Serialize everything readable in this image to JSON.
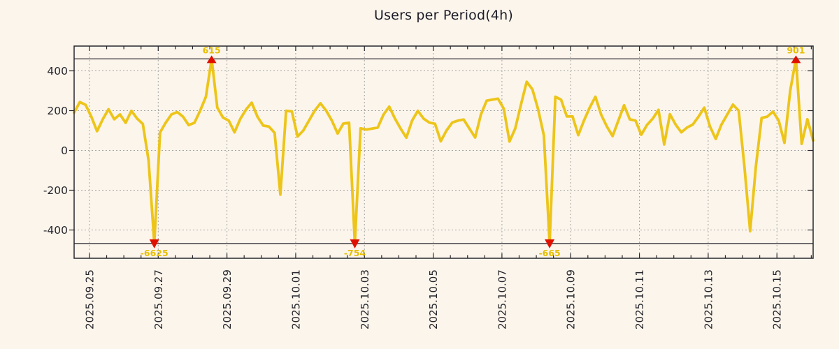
{
  "title": "Users per Period(4h)",
  "colors": {
    "background": "#FCF5EC",
    "line": "#EDC51A",
    "marker": "#E01000",
    "annotation_text": "#E6BE00",
    "axis": "#26262C",
    "grid": "#A3A3A3",
    "title_text": "#1B1B26"
  },
  "chart_data": {
    "type": "line",
    "title": "Users per Period(4h)",
    "xlabel": "",
    "ylabel": "",
    "x_tick_labels": [
      "2025.09.25",
      "2025.09.27",
      "2025.09.29",
      "2025.10.01",
      "2025.10.03",
      "2025.10.05",
      "2025.10.07",
      "2025.10.09",
      "2025.10.11",
      "2025.10.13",
      "2025.10.15"
    ],
    "x_tick_interval_days": 2,
    "points_between_major_ticks": 12,
    "major_tick_start_index": 2.68,
    "minor_ticks_per_major": 4,
    "y_ticks": [
      400,
      200,
      0,
      -200,
      -400
    ],
    "ylim": [
      -547,
      524
    ],
    "clip_max": 460,
    "clip_min": -468,
    "grid": true,
    "legend": null,
    "values": [
      190,
      243,
      229,
      170,
      97,
      157,
      207,
      157,
      181,
      139,
      199,
      160,
      133,
      -50,
      -6625,
      90,
      140,
      181,
      193,
      170,
      127,
      139,
      200,
      270,
      615,
      215,
      165,
      150,
      91,
      158,
      205,
      240,
      170,
      125,
      120,
      88,
      -222,
      199,
      196,
      70,
      100,
      150,
      200,
      237,
      200,
      150,
      85,
      135,
      139,
      -754,
      111,
      105,
      110,
      115,
      180,
      220,
      160,
      110,
      64,
      150,
      199,
      160,
      140,
      134,
      46,
      100,
      140,
      150,
      155,
      110,
      65,
      180,
      250,
      255,
      260,
      210,
      45,
      110,
      230,
      345,
      307,
      206,
      75,
      -665,
      270,
      255,
      171,
      171,
      77,
      150,
      215,
      270,
      180,
      120,
      72,
      150,
      227,
      156,
      150,
      79,
      128,
      160,
      204,
      30,
      182,
      130,
      91,
      115,
      130,
      170,
      215,
      120,
      58,
      130,
      180,
      230,
      200,
      -80,
      -406,
      -81,
      163,
      170,
      195,
      150,
      38,
      300,
      901,
      33,
      157,
      50
    ],
    "annotations": [
      {
        "index": 14,
        "label": "-6625",
        "direction": "down"
      },
      {
        "index": 24,
        "label": "615",
        "direction": "up"
      },
      {
        "index": 49,
        "label": "-754",
        "direction": "down"
      },
      {
        "index": 83,
        "label": "-665",
        "direction": "down"
      },
      {
        "index": 126,
        "label": "901",
        "direction": "up"
      }
    ]
  }
}
